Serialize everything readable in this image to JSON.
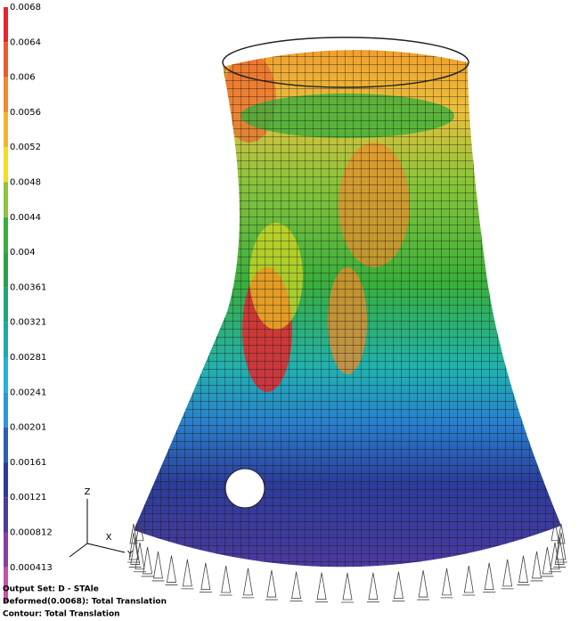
{
  "legend": {
    "labels": [
      "0.0068",
      "0.0064",
      "0.006",
      "0.0056",
      "0.0052",
      "0.0048",
      "0.0044",
      "0.004",
      "0.00361",
      "0.00321",
      "0.00281",
      "0.00241",
      "0.00201",
      "0.00161",
      "0.00121",
      "0.000812",
      "0.000413"
    ],
    "colors": [
      "#e8242c",
      "#ec5a2c",
      "#f08a2c",
      "#f6b42c",
      "#f2e01c",
      "#8cc43c",
      "#3aae3c",
      "#26a448",
      "#20a67c",
      "#1eaaa8",
      "#22b4d8",
      "#2a98dc",
      "#2a60b4",
      "#2c3c98",
      "#4c3a9c",
      "#8a3ea0",
      "#c452aa"
    ]
  },
  "triad": {
    "z": "Z",
    "x": "X",
    "y": "Y"
  },
  "footer": [
    "Output Set: D - STAle",
    "Deformed(0.0068): Total Translation",
    "Contour: Total Translation"
  ]
}
